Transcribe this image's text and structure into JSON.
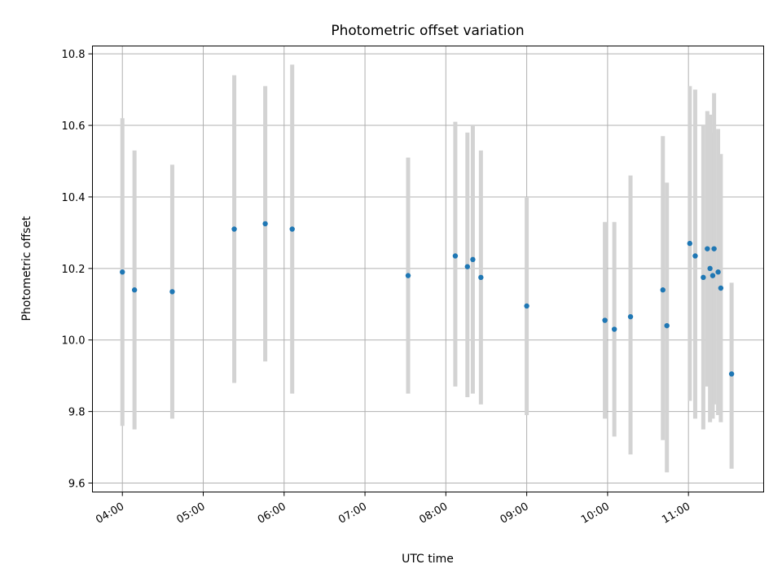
{
  "chart_data": {
    "type": "scatter",
    "title": "Photometric offset variation",
    "xlabel": "UTC time",
    "ylabel": "Photometric offset",
    "x_tick_labels": [
      "04:00",
      "05:00",
      "06:00",
      "07:00",
      "08:00",
      "09:00",
      "10:00",
      "11:00"
    ],
    "x_ticks_hours": [
      4,
      5,
      6,
      7,
      8,
      9,
      10,
      11
    ],
    "xlim_hours": [
      3.63,
      11.93
    ],
    "y_ticks": [
      9.6,
      9.8,
      10.0,
      10.2,
      10.4,
      10.6,
      10.8
    ],
    "y_tick_labels": [
      "9.6",
      "9.8",
      "10.0",
      "10.2",
      "10.4",
      "10.6",
      "10.8"
    ],
    "ylim": [
      9.575,
      10.822
    ],
    "grid": true,
    "point_color": "#1f77b4",
    "errorbar_color": "#d3d3d3",
    "series": [
      {
        "points": [
          {
            "t": "04:00",
            "y": 10.19,
            "lo": 9.76,
            "hi": 10.62
          },
          {
            "t": "04:09",
            "y": 10.14,
            "lo": 9.75,
            "hi": 10.53
          },
          {
            "t": "04:37",
            "y": 10.135,
            "lo": 9.78,
            "hi": 10.49
          },
          {
            "t": "05:23",
            "y": 10.31,
            "lo": 9.88,
            "hi": 10.74
          },
          {
            "t": "05:46",
            "y": 10.325,
            "lo": 9.94,
            "hi": 10.71
          },
          {
            "t": "06:06",
            "y": 10.31,
            "lo": 9.85,
            "hi": 10.77
          },
          {
            "t": "07:32",
            "y": 10.18,
            "lo": 9.85,
            "hi": 10.51
          },
          {
            "t": "08:07",
            "y": 10.235,
            "lo": 9.87,
            "hi": 10.61
          },
          {
            "t": "08:16",
            "y": 10.205,
            "lo": 9.84,
            "hi": 10.58
          },
          {
            "t": "08:20",
            "y": 10.225,
            "lo": 9.85,
            "hi": 10.6
          },
          {
            "t": "08:26",
            "y": 10.175,
            "lo": 9.82,
            "hi": 10.53
          },
          {
            "t": "09:00",
            "y": 10.095,
            "lo": 9.79,
            "hi": 10.4
          },
          {
            "t": "09:58",
            "y": 10.055,
            "lo": 9.78,
            "hi": 10.33
          },
          {
            "t": "10:05",
            "y": 10.03,
            "lo": 9.73,
            "hi": 10.33
          },
          {
            "t": "10:17",
            "y": 10.065,
            "lo": 9.68,
            "hi": 10.46
          },
          {
            "t": "10:41",
            "y": 10.14,
            "lo": 9.72,
            "hi": 10.57
          },
          {
            "t": "10:44",
            "y": 10.04,
            "lo": 9.63,
            "hi": 10.44
          },
          {
            "t": "11:01",
            "y": 10.27,
            "lo": 9.83,
            "hi": 10.71
          },
          {
            "t": "11:05",
            "y": 10.235,
            "lo": 9.78,
            "hi": 10.7
          },
          {
            "t": "11:11",
            "y": 10.175,
            "lo": 9.75,
            "hi": 10.6
          },
          {
            "t": "11:14",
            "y": 10.255,
            "lo": 9.87,
            "hi": 10.64
          },
          {
            "t": "11:16",
            "y": 10.2,
            "lo": 9.77,
            "hi": 10.63
          },
          {
            "t": "11:18",
            "y": 10.18,
            "lo": 9.78,
            "hi": 10.58
          },
          {
            "t": "11:19",
            "y": 10.255,
            "lo": 9.82,
            "hi": 10.69
          },
          {
            "t": "11:22",
            "y": 10.19,
            "lo": 9.79,
            "hi": 10.59
          },
          {
            "t": "11:24",
            "y": 10.145,
            "lo": 9.77,
            "hi": 10.52
          },
          {
            "t": "11:32",
            "y": 9.905,
            "lo": 9.64,
            "hi": 10.16
          }
        ]
      }
    ]
  }
}
